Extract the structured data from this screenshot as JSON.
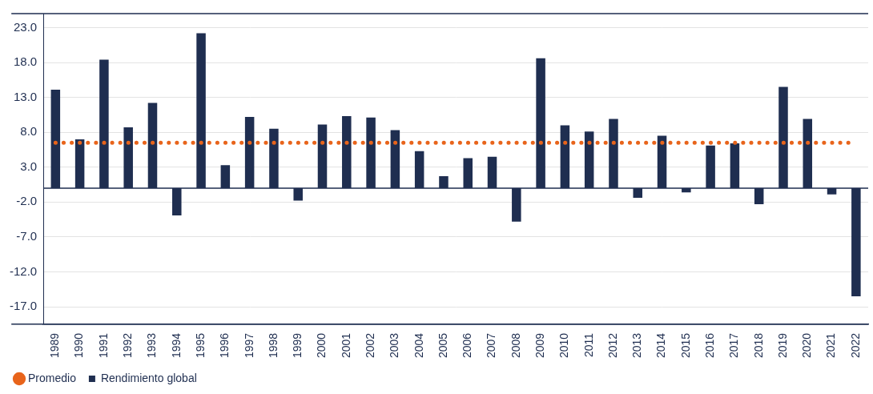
{
  "chart_data": {
    "type": "bar",
    "categories": [
      "1989",
      "1990",
      "1991",
      "1992",
      "1993",
      "1994",
      "1995",
      "1996",
      "1997",
      "1998",
      "1999",
      "2000",
      "2001",
      "2002",
      "2003",
      "2004",
      "2005",
      "2006",
      "2007",
      "2008",
      "2009",
      "2010",
      "2011",
      "2012",
      "2013",
      "2014",
      "2015",
      "2016",
      "2017",
      "2018",
      "2019",
      "2020",
      "2021",
      "2022"
    ],
    "series": [
      {
        "name": "Rendimiento global",
        "type": "bar",
        "color": "#1f2e50",
        "marker": "square",
        "values": [
          14.1,
          7.0,
          18.4,
          8.7,
          12.2,
          -3.9,
          22.2,
          3.3,
          10.2,
          8.5,
          -1.8,
          9.1,
          10.3,
          10.1,
          8.3,
          5.3,
          1.7,
          4.3,
          4.5,
          -4.8,
          18.6,
          9.0,
          8.1,
          9.9,
          -1.4,
          7.5,
          -0.6,
          6.1,
          6.4,
          -2.3,
          14.5,
          9.9,
          -0.9,
          -15.5
        ]
      },
      {
        "name": "Promedio",
        "type": "line",
        "color": "#e8641b",
        "line_style": "dotted",
        "marker": "circle",
        "values": [
          6.5,
          6.5,
          6.5,
          6.5,
          6.5,
          6.5,
          6.5,
          6.5,
          6.5,
          6.5,
          6.5,
          6.5,
          6.5,
          6.5,
          6.5,
          6.5,
          6.5,
          6.5,
          6.5,
          6.5,
          6.5,
          6.5,
          6.5,
          6.5,
          6.5,
          6.5,
          6.5,
          6.5,
          6.5,
          6.5,
          6.5,
          6.5,
          6.5,
          6.5
        ]
      }
    ],
    "ylim": [
      -19.5,
      25
    ],
    "yticks": [
      {
        "value": -17,
        "label": "-17.0"
      },
      {
        "value": -12,
        "label": "-12.0"
      },
      {
        "value": -7,
        "label": "-7.0"
      },
      {
        "value": -2,
        "label": "-2.0"
      },
      {
        "value": 3,
        "label": "3.0"
      },
      {
        "value": 8,
        "label": "8.0"
      },
      {
        "value": 13,
        "label": "13.0"
      },
      {
        "value": 18,
        "label": "18.0"
      },
      {
        "value": 23,
        "label": "23.0"
      }
    ],
    "grid": true,
    "legend": "bottom-left"
  }
}
